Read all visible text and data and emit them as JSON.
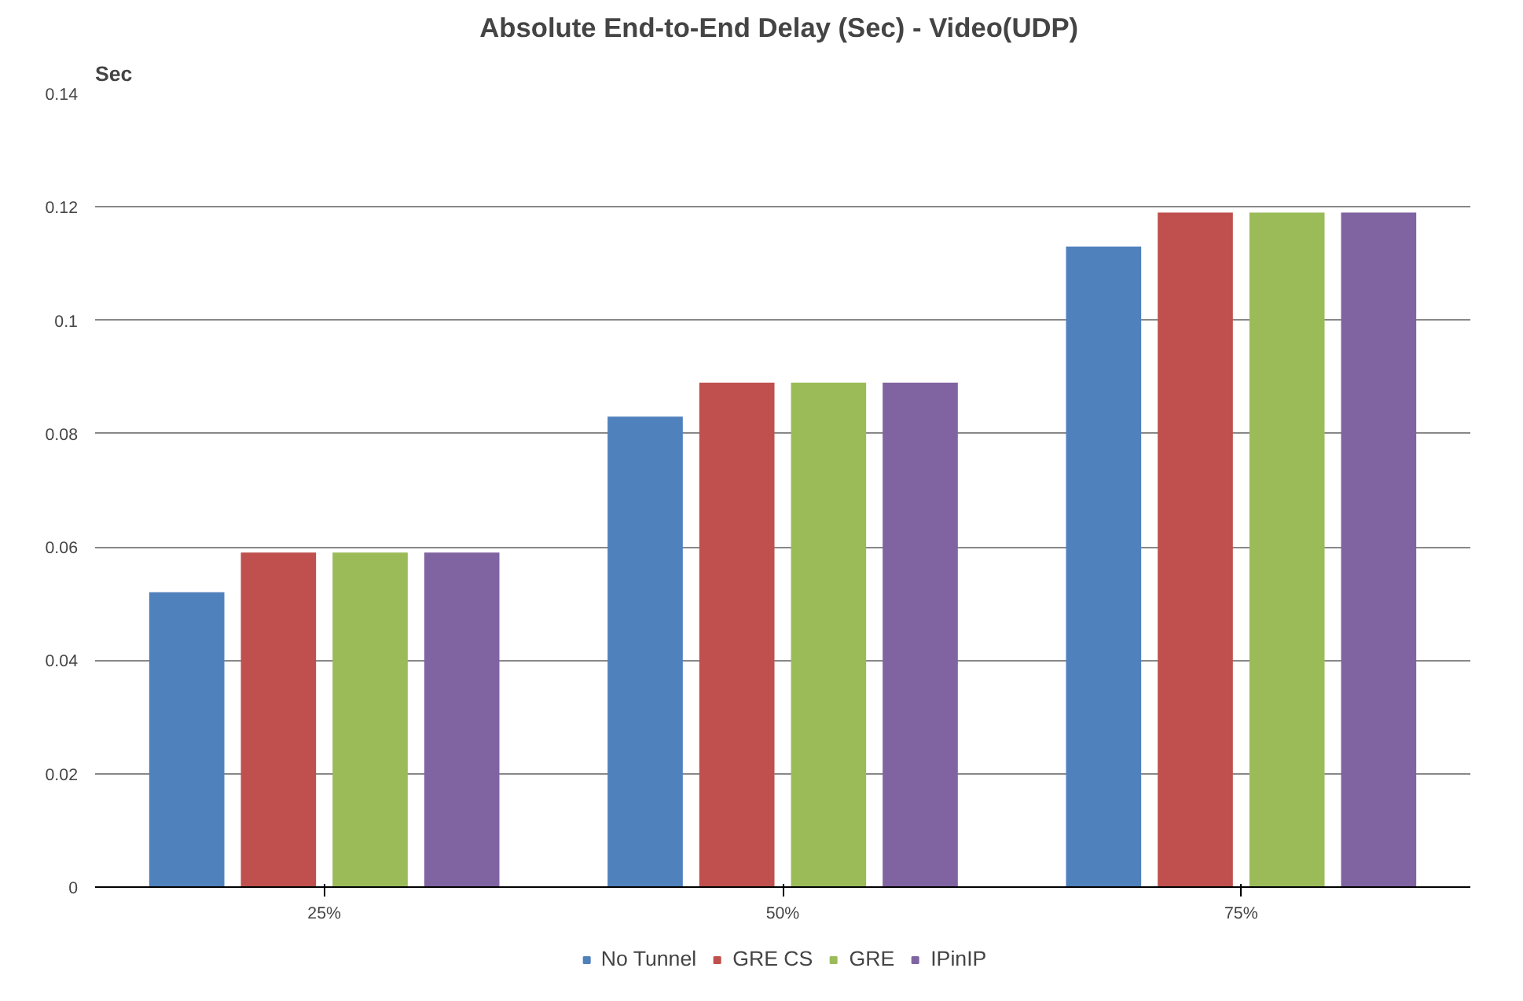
{
  "chart_data": {
    "type": "bar",
    "title": "Absolute End-to-End  Delay (Sec) - Video(UDP)",
    "ylabel": "Sec",
    "categories": [
      "25%",
      "50%",
      "75%"
    ],
    "series": [
      {
        "name": "No Tunnel",
        "color": "#4f81bd",
        "values": [
          0.052,
          0.083,
          0.113
        ]
      },
      {
        "name": "GRE CS",
        "color": "#c0504d",
        "values": [
          0.059,
          0.089,
          0.119
        ]
      },
      {
        "name": "GRE",
        "color": "#9bbb59",
        "values": [
          0.059,
          0.089,
          0.119
        ]
      },
      {
        "name": "IPinIP",
        "color": "#8064a2",
        "values": [
          0.059,
          0.089,
          0.119
        ]
      }
    ],
    "ylim": [
      0,
      0.14
    ],
    "yticks": [
      0,
      0.02,
      0.04,
      0.06,
      0.08,
      0.1,
      0.12,
      0.14
    ],
    "grid": "y",
    "legend": "bottom"
  }
}
